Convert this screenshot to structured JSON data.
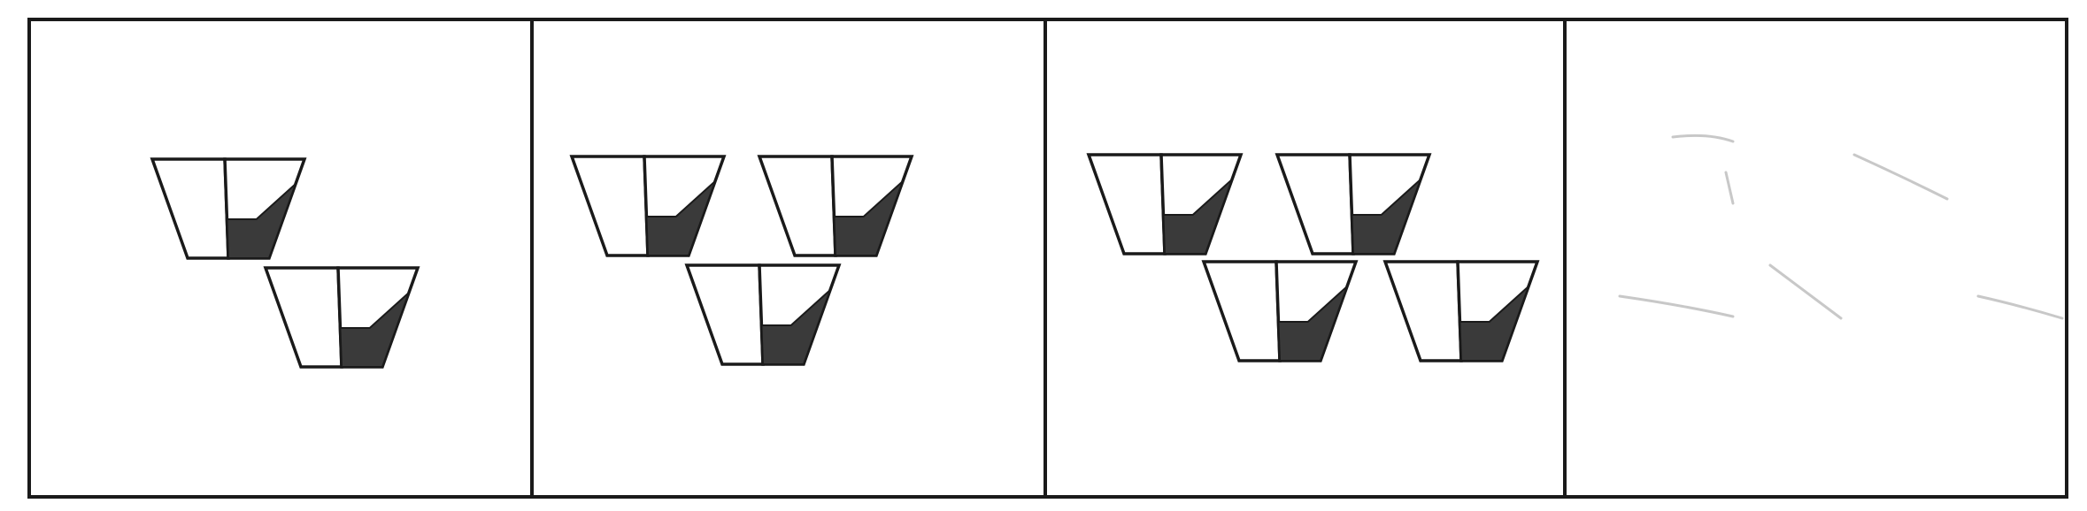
{
  "figure": {
    "panel_count": 4,
    "panels": [
      {
        "id": "panel-1",
        "item": "bowl",
        "count": 2,
        "blank": false
      },
      {
        "id": "panel-2",
        "item": "bowl",
        "count": 3,
        "blank": false
      },
      {
        "id": "panel-3",
        "item": "bowl",
        "count": 4,
        "blank": false
      },
      {
        "id": "panel-4",
        "item": "bowl",
        "count": 0,
        "blank": true
      }
    ],
    "colors": {
      "line": "#1a1a1a",
      "fill_dark": "#3a3a3a",
      "background": "#ffffff"
    }
  }
}
